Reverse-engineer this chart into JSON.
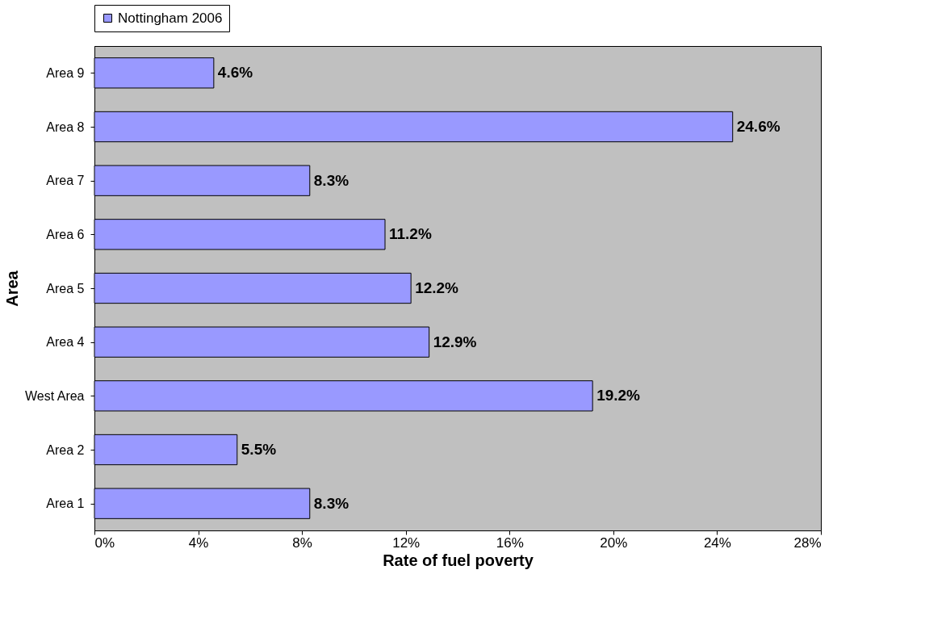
{
  "chart_data": {
    "type": "bar",
    "orientation": "horizontal",
    "xlabel": "Rate of fuel poverty",
    "ylabel": "Area",
    "categories": [
      "Area 9",
      "Area 8",
      "Area 7",
      "Area 6",
      "Area 5",
      "Area 4",
      "West Area",
      "Area 2",
      "Area 1"
    ],
    "series": [
      {
        "name": "Nottingham 2006",
        "color": "#9999ff",
        "values": [
          4.6,
          24.6,
          8.3,
          11.2,
          12.2,
          12.9,
          19.2,
          5.5,
          8.3
        ]
      }
    ],
    "value_labels": [
      "4.6%",
      "24.6%",
      "8.3%",
      "11.2%",
      "12.2%",
      "12.9%",
      "19.2%",
      "5.5%",
      "8.3%"
    ],
    "xlim": [
      0,
      28
    ],
    "xticks": [
      {
        "value": 0,
        "label": "0%"
      },
      {
        "value": 4,
        "label": "4%"
      },
      {
        "value": 8,
        "label": "8%"
      },
      {
        "value": 12,
        "label": "12%"
      },
      {
        "value": 16,
        "label": "16%"
      },
      {
        "value": 20,
        "label": "20%"
      },
      {
        "value": 24,
        "label": "24%"
      },
      {
        "value": 28,
        "label": "28%"
      }
    ],
    "grid": false,
    "legend": "top"
  }
}
